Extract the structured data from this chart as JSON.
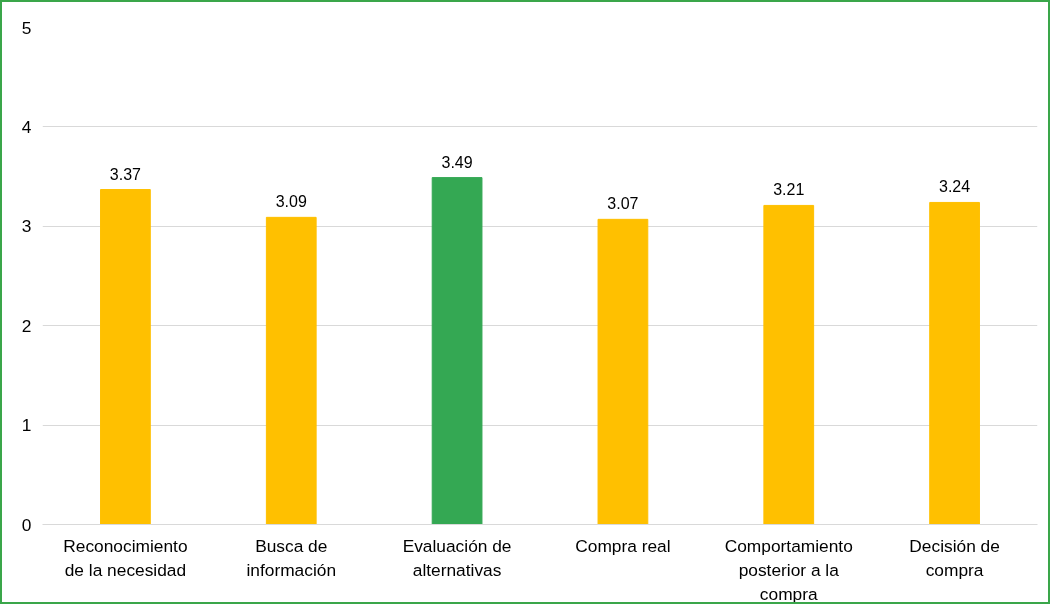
{
  "chart_data": {
    "type": "bar",
    "categories": [
      "Reconocimiento de la necesidad",
      "Busca de información",
      "Evaluación de alternativas",
      "Compra real",
      "Comportamiento posterior a la compra",
      "Decisión de compra"
    ],
    "values": [
      3.37,
      3.09,
      3.49,
      3.07,
      3.21,
      3.24
    ],
    "colors": [
      "#ffc000",
      "#ffc000",
      "#34a853",
      "#ffc000",
      "#ffc000",
      "#ffc000"
    ],
    "ylim": [
      0,
      5
    ],
    "yticks": [
      0,
      1,
      2,
      3,
      4,
      5
    ],
    "grid": "y",
    "data_labels": true
  }
}
